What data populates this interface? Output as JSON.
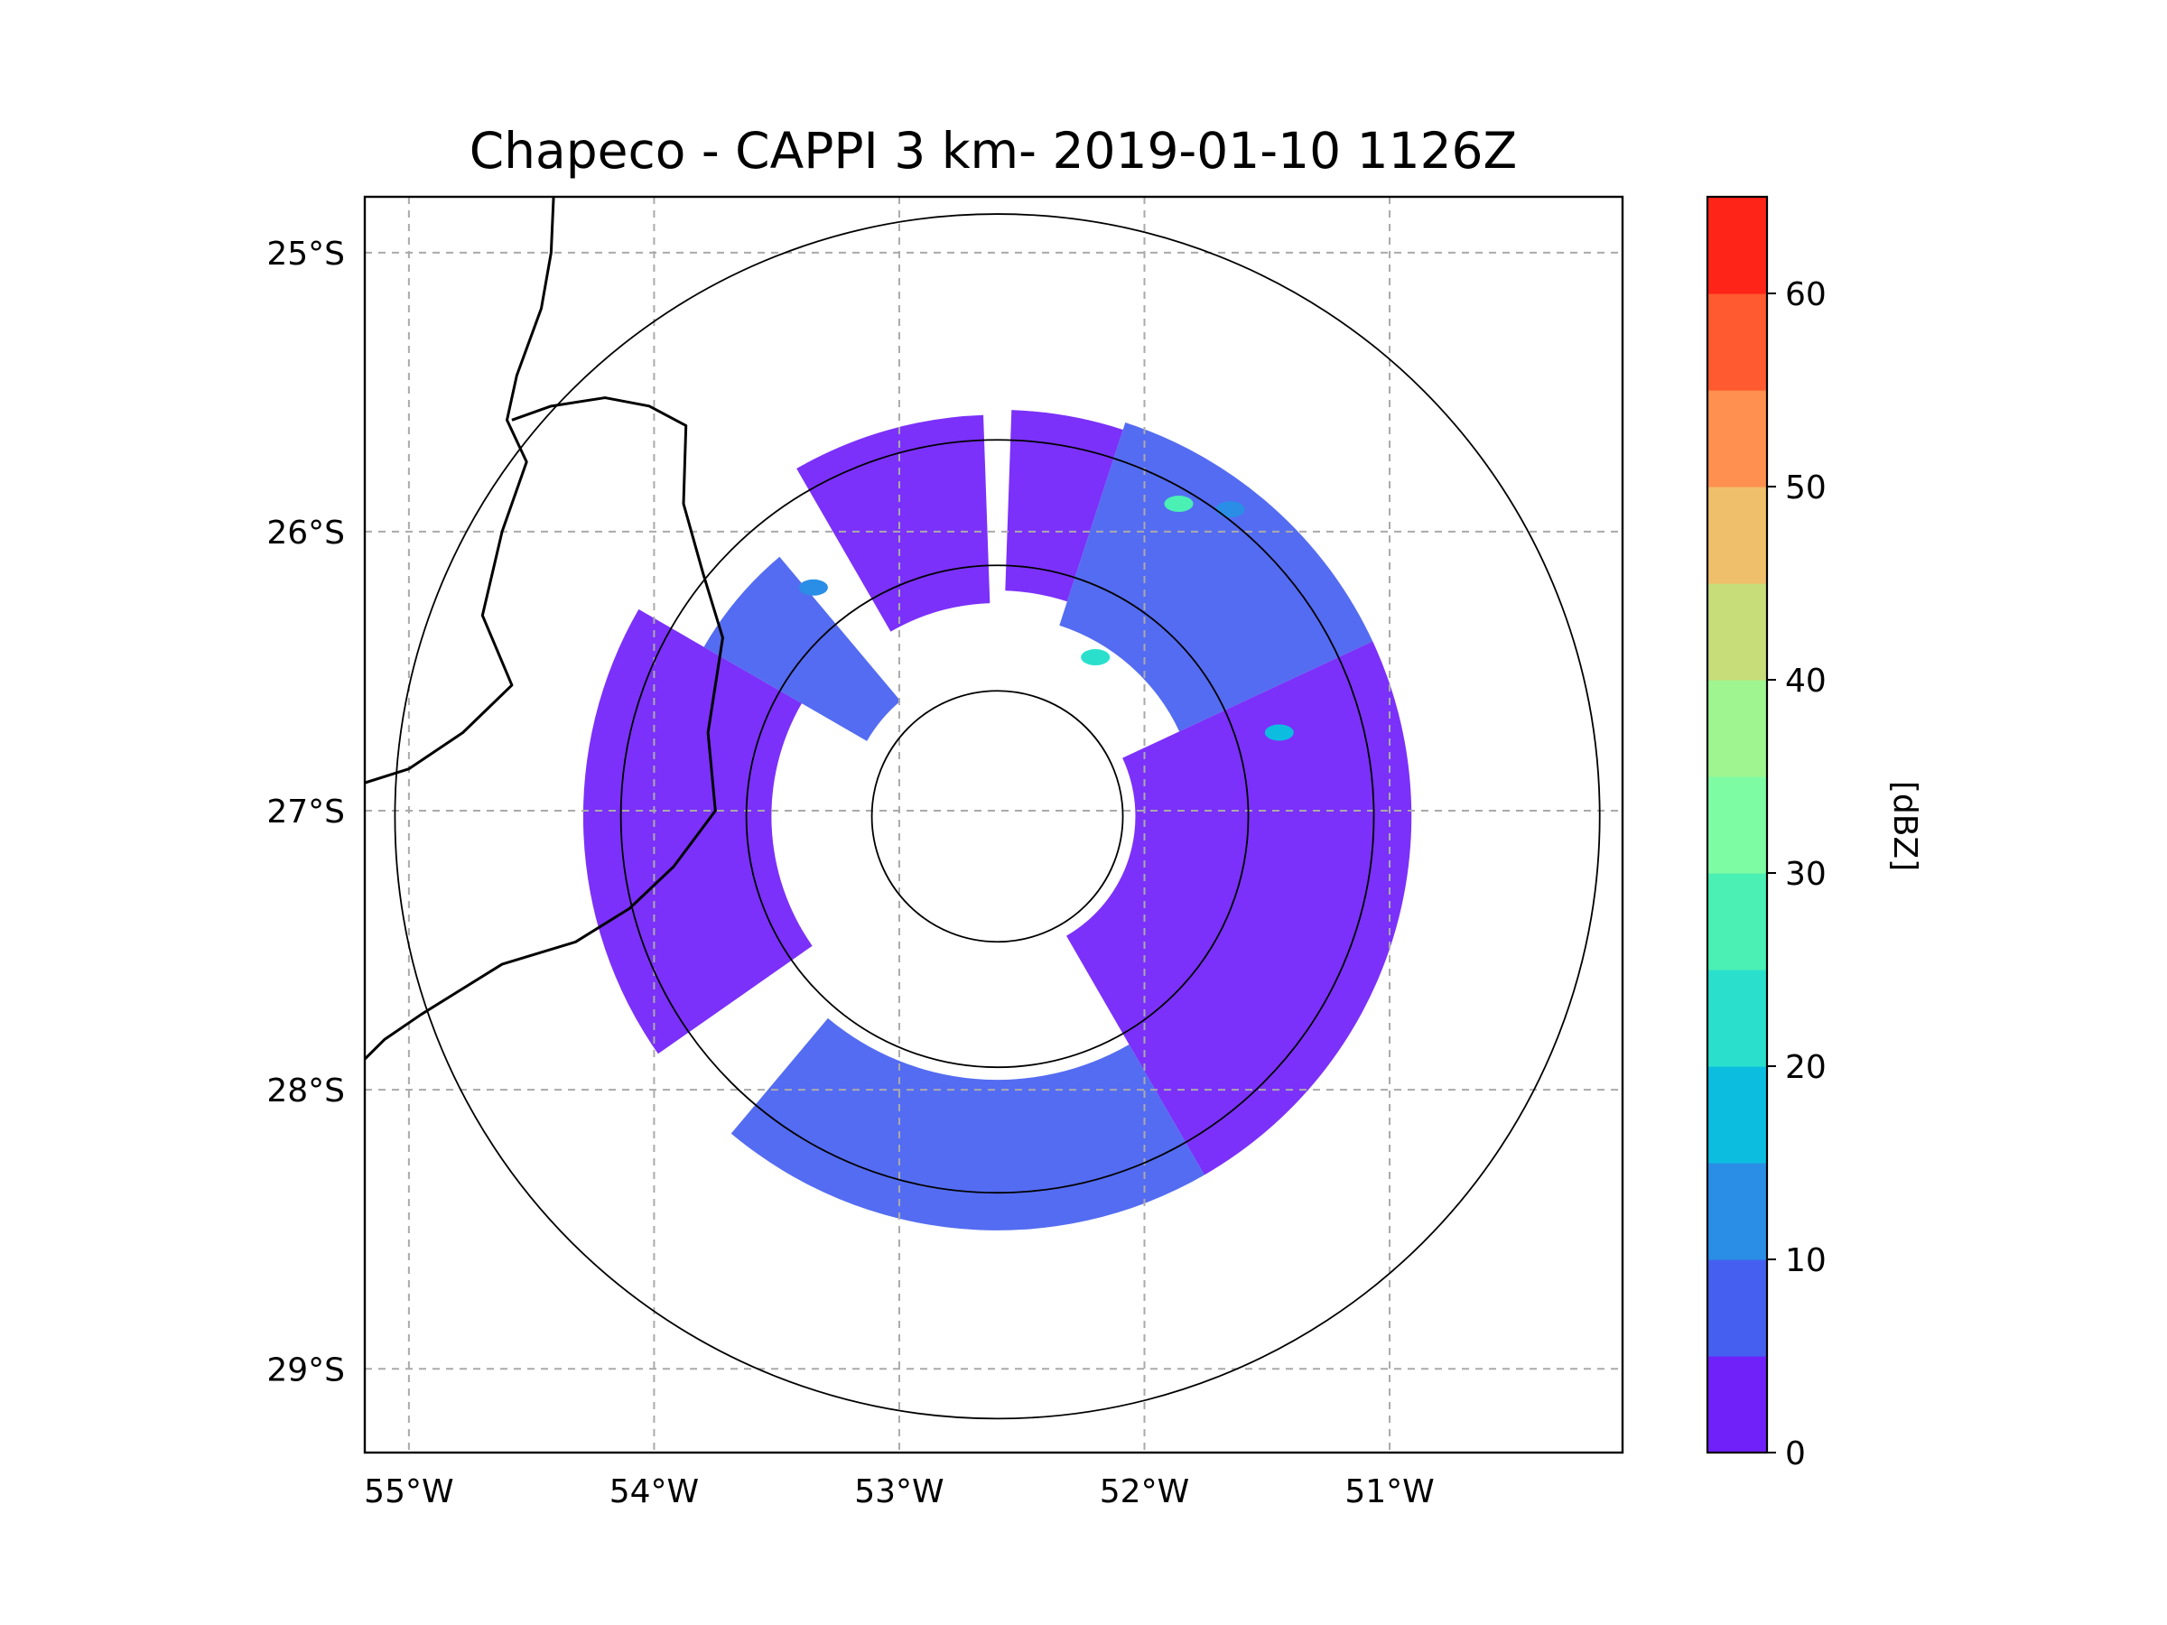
{
  "chart_data": {
    "type": "radar-ppi-map",
    "title": "Chapeco - CAPPI 3 km- 2019-01-10 1126Z",
    "station": "Chapeco",
    "product": "CAPPI 3 km",
    "datetime": "2019-01-10 1126Z",
    "xlabel": "",
    "ylabel": "",
    "lon_range": [
      -55.18,
      -50.05
    ],
    "lat_range": [
      -29.3,
      -24.8
    ],
    "x_ticks": [
      {
        "value": -55,
        "label": "55°W"
      },
      {
        "value": -54,
        "label": "54°W"
      },
      {
        "value": -53,
        "label": "53°W"
      },
      {
        "value": -52,
        "label": "52°W"
      },
      {
        "value": -51,
        "label": "51°W"
      }
    ],
    "y_ticks": [
      {
        "value": -25,
        "label": "25°S"
      },
      {
        "value": -26,
        "label": "26°S"
      },
      {
        "value": -27,
        "label": "27°S"
      },
      {
        "value": -28,
        "label": "28°S"
      },
      {
        "value": -29,
        "label": "29°S"
      }
    ],
    "gridlines": true,
    "radar_center": {
      "lon": -52.6,
      "lat": -27.02
    },
    "range_rings_km": [
      50,
      100,
      150,
      240
    ],
    "coverage_radius_km": 165,
    "colorbar": {
      "label": "[dBZ]",
      "min": 0,
      "max": 65,
      "step": 5,
      "ticks": [
        {
          "value": 0,
          "label": "0"
        },
        {
          "value": 10,
          "label": "10"
        },
        {
          "value": 20,
          "label": "20"
        },
        {
          "value": 30,
          "label": "30"
        },
        {
          "value": 40,
          "label": "40"
        },
        {
          "value": 50,
          "label": "50"
        },
        {
          "value": 60,
          "label": "60"
        }
      ],
      "colors": [
        "#7020f8",
        "#4560f0",
        "#2a8ee6",
        "#0cbde0",
        "#2ae0cc",
        "#4af0b4",
        "#7efca4",
        "#9ff590",
        "#c7dd7a",
        "#f0bf6c",
        "#ff9050",
        "#ff5a30",
        "#ff2418"
      ]
    },
    "echo_sectors": [
      {
        "az_from": 330,
        "az_to": 358,
        "r_from_km": 85,
        "r_to_km": 160,
        "dbz": 3
      },
      {
        "az_from": 2,
        "az_to": 18,
        "r_from_km": 90,
        "r_to_km": 162,
        "dbz": 3
      },
      {
        "az_from": 18,
        "az_to": 65,
        "r_from_km": 80,
        "r_to_km": 165,
        "dbz": 6
      },
      {
        "az_from": 65,
        "az_to": 150,
        "r_from_km": 55,
        "r_to_km": 165,
        "dbz": 3
      },
      {
        "az_from": 150,
        "az_to": 220,
        "r_from_km": 105,
        "r_to_km": 165,
        "dbz": 6
      },
      {
        "az_from": 235,
        "az_to": 300,
        "r_from_km": 90,
        "r_to_km": 165,
        "dbz": 3
      },
      {
        "az_from": 300,
        "az_to": 320,
        "r_from_km": 60,
        "r_to_km": 135,
        "dbz": 6
      }
    ],
    "echo_cells": [
      {
        "lon": -51.86,
        "lat": -25.9,
        "dbz": 25
      },
      {
        "lon": -51.65,
        "lat": -25.92,
        "dbz": 12
      },
      {
        "lon": -52.2,
        "lat": -26.45,
        "dbz": 22
      },
      {
        "lon": -51.45,
        "lat": -26.72,
        "dbz": 15
      },
      {
        "lon": -53.35,
        "lat": -26.2,
        "dbz": 10
      }
    ],
    "borders": [
      [
        [
          -54.41,
          -24.8
        ],
        [
          -54.42,
          -25.0
        ],
        [
          -54.46,
          -25.2
        ],
        [
          -54.56,
          -25.44
        ],
        [
          -54.6,
          -25.6
        ],
        [
          -54.52,
          -25.75
        ],
        [
          -54.62,
          -26.0
        ],
        [
          -54.7,
          -26.3
        ],
        [
          -54.58,
          -26.55
        ],
        [
          -54.78,
          -26.72
        ],
        [
          -55.0,
          -26.85
        ],
        [
          -55.18,
          -26.9
        ]
      ],
      [
        [
          -54.58,
          -25.6
        ],
        [
          -54.42,
          -25.55
        ],
        [
          -54.2,
          -25.52
        ],
        [
          -54.02,
          -25.55
        ],
        [
          -53.87,
          -25.62
        ],
        [
          -53.88,
          -25.9
        ],
        [
          -53.8,
          -26.15
        ],
        [
          -53.72,
          -26.38
        ],
        [
          -53.78,
          -26.72
        ],
        [
          -53.75,
          -27.0
        ],
        [
          -53.92,
          -27.2
        ],
        [
          -54.1,
          -27.35
        ],
        [
          -54.32,
          -27.47
        ],
        [
          -54.62,
          -27.55
        ],
        [
          -54.95,
          -27.73
        ],
        [
          -55.1,
          -27.82
        ],
        [
          -55.18,
          -27.89
        ]
      ]
    ]
  }
}
